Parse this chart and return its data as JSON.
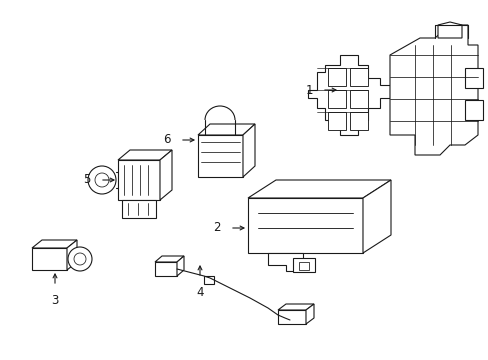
{
  "background_color": "#ffffff",
  "line_color": "#1a1a1a",
  "line_width": 0.8,
  "fig_width": 4.89,
  "fig_height": 3.6,
  "dpi": 100
}
